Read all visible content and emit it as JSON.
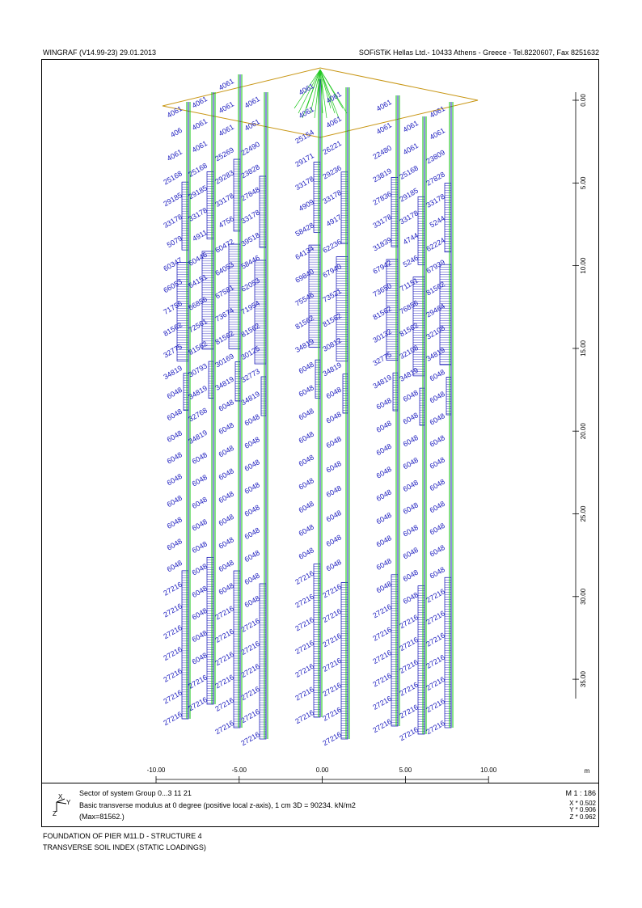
{
  "header": {
    "left": "WINGRAF (V14.99-23) 29.01.2013",
    "right": "SOFiSTiK Hellas Ltd.- 10433 Athens - Greece - Tel.8220607, Fax 8251632"
  },
  "vertical_axis": {
    "ticks": [
      "0.00",
      "5.00",
      "10.00",
      "15.00",
      "20.00",
      "25.00",
      "30.00",
      "35.00"
    ]
  },
  "horizontal_axis": {
    "ticks": [
      "-10.00",
      "-5.00",
      "0.00",
      "5.00",
      "10.00"
    ],
    "unit": "m"
  },
  "legend": {
    "line1": "Sector of system Group 0...3 11 21",
    "line2": "Basic transverse modulus at 0 degree (positive local z-axis), 1 cm 3D = 90234. kN/m2",
    "line3": "(Max=81562.)",
    "scale": "M 1 : 186",
    "x_dir": "X * 0.502",
    "y_dir": "Y * 0.906",
    "z_dir": "Z * 0.962",
    "axis_labels": {
      "x": "X",
      "y": "Y",
      "z": "Z"
    }
  },
  "footer": {
    "line1": "FOUNDATION OF PIER M11.D - STRUCTURE 4",
    "line2": "TRANSVERSE SOIL INDEX (STATIC LOADINGS)"
  },
  "colors": {
    "pile_green": "#1fc81f",
    "pile_blue": "#0a0ab4",
    "label_blue": "#2020c0",
    "pile_cap": "#c89614"
  },
  "piles": [
    {
      "labels": [
        "4061",
        "406",
        "4061",
        "25168",
        "29185",
        "33178",
        "5079",
        "60347",
        "66053",
        "71756",
        "81562",
        "32775",
        "34819",
        "6048",
        "6048",
        "6048",
        "6048",
        "6048",
        "6048",
        "6048",
        "6048",
        "6048",
        "27216",
        "27216",
        "27216",
        "27216",
        "27216",
        "27216",
        "27216"
      ]
    },
    {
      "labels": [
        "4061",
        "4061",
        "4061",
        "25168",
        "29185",
        "33178",
        "4911",
        "60446",
        "64151",
        "66856",
        "72561",
        "81562",
        "30793",
        "34819",
        "32768",
        "34819",
        "6048",
        "6048",
        "6048",
        "6048",
        "6048",
        "6048",
        "6048",
        "6048",
        "6048",
        "6048",
        "27216",
        "27216"
      ]
    },
    {
      "labels": [
        "4061",
        "4061",
        "4061",
        "25269",
        "29283",
        "33178",
        "4756",
        "60472",
        "64053",
        "67581",
        "73674",
        "81562",
        "30169",
        "34819",
        "6048",
        "6048",
        "6048",
        "6048",
        "6048",
        "6048",
        "6048",
        "6048",
        "6048",
        "27216",
        "27216",
        "27216",
        "27216",
        "27216",
        "27216"
      ]
    },
    {
      "labels": [
        "4061",
        "4061",
        "22490",
        "23828",
        "27848",
        "33178",
        "39518",
        "58446",
        "62053",
        "71954",
        "81562",
        "30125",
        "32773",
        "34819",
        "6048",
        "6048",
        "6048",
        "6048",
        "6048",
        "6048",
        "6048",
        "6048",
        "6048",
        "27216",
        "27216",
        "27216",
        "27216",
        "27216",
        "27216"
      ]
    },
    {
      "labels": [
        "4061",
        "4061",
        "25154",
        "29171",
        "33178",
        "4909",
        "58428",
        "64134",
        "69840",
        "75546",
        "81562",
        "34819",
        "6048",
        "6048",
        "6048",
        "6048",
        "6048",
        "6048",
        "6048",
        "6048",
        "6048",
        "27216",
        "27216",
        "27216",
        "27216",
        "27216",
        "27216",
        "27216"
      ]
    },
    {
      "labels": [
        "4061",
        "4061",
        "26221",
        "29236",
        "33178",
        "4917",
        "62236",
        "67940",
        "73521",
        "81562",
        "30812",
        "34819",
        "6048",
        "6048",
        "6048",
        "6048",
        "6048",
        "6048",
        "6048",
        "6048",
        "27216",
        "27216",
        "27216",
        "27216",
        "27216",
        "27216",
        "27216"
      ]
    },
    {
      "labels": [
        "4061",
        "4061",
        "22480",
        "23819",
        "27836",
        "33178",
        "31839",
        "67942",
        "73650",
        "81562",
        "30132",
        "32775",
        "34819",
        "6048",
        "6048",
        "6048",
        "6048",
        "6048",
        "6048",
        "6048",
        "6048",
        "6048",
        "27216",
        "27216",
        "27216",
        "27216",
        "27216",
        "27216"
      ]
    },
    {
      "labels": [
        "4061",
        "4061",
        "25168",
        "29185",
        "33178",
        "4744",
        "5246",
        "71151",
        "76856",
        "81562",
        "32108",
        "34819",
        "6048",
        "6048",
        "6048",
        "6048",
        "6048",
        "6048",
        "6048",
        "6048",
        "6048",
        "6048",
        "27216",
        "27216",
        "27216",
        "27216",
        "27216",
        "27216"
      ]
    },
    {
      "labels": [
        "4061",
        "4061",
        "23809",
        "27828",
        "33178",
        "5244",
        "62224",
        "67939",
        "81562",
        "29464",
        "32108",
        "34819",
        "6048",
        "6048",
        "6048",
        "6048",
        "6048",
        "6048",
        "6048",
        "6048",
        "6048",
        "6048",
        "27216",
        "27216",
        "27216",
        "27216",
        "27216",
        "27216",
        "27216"
      ]
    }
  ]
}
